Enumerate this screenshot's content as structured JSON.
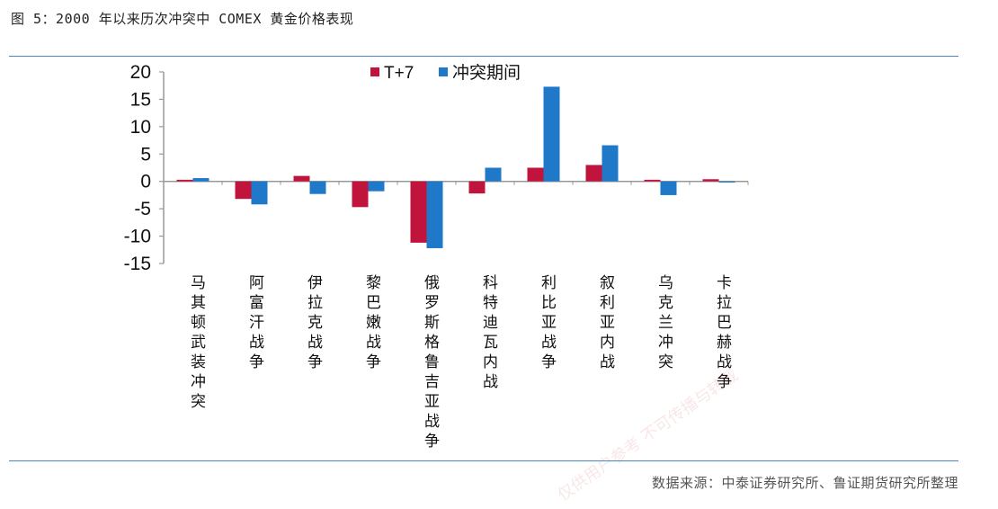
{
  "figure": {
    "title": "图 5：2000 年以来历次冲突中 COMEX 黄金价格表现",
    "source": "数据来源：中泰证券研究所、鲁证期货研究所整理",
    "watermark": "仅供用户参考 不可传播与转载"
  },
  "colors": {
    "t7": "#c0143c",
    "period": "#1f78c8",
    "axis": "#999999",
    "rule": "#4a86c8"
  },
  "chart_data": {
    "type": "bar",
    "title": "",
    "xlabel": "",
    "ylabel": "",
    "ylim": [
      -15,
      20
    ],
    "yticks": [
      20,
      15,
      10,
      5,
      0,
      -5,
      -10,
      -15
    ],
    "grid": false,
    "legend_position": "top-center",
    "categories": [
      "马其顿武装冲突",
      "阿富汗战争",
      "伊拉克战争",
      "黎巴嫩战争",
      "俄罗斯格鲁吉亚战争",
      "科特迪瓦内战",
      "利比亚战争",
      "叙利亚内战",
      "乌克兰冲突",
      "卡拉巴赫战争"
    ],
    "series": [
      {
        "name": "T+7",
        "values": [
          0.3,
          -3.2,
          1.0,
          -4.7,
          -11.2,
          -2.2,
          2.5,
          3.0,
          0.3,
          0.4
        ]
      },
      {
        "name": "冲突期间",
        "values": [
          0.6,
          -4.2,
          -2.3,
          -1.8,
          -12.2,
          2.5,
          17.3,
          6.6,
          -2.5,
          -0.2
        ]
      }
    ]
  }
}
